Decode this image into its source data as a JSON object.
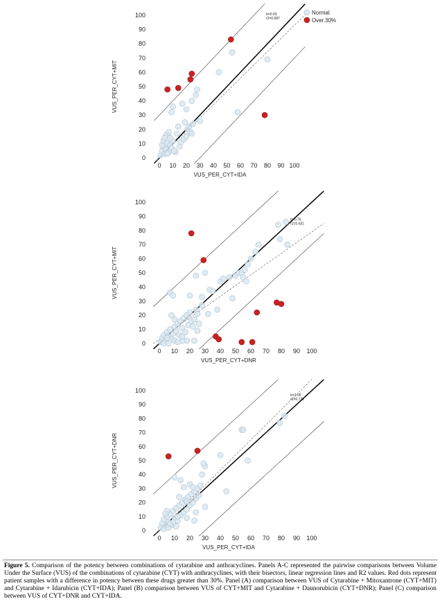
{
  "caption": {
    "label": "Figure 5.",
    "text": "Comparison of the potency between combinations of cytarabine and anthracyclines. Panels A-C represented the pairwise comparisons between Volume Under the Surface (VUS) of the combinations of cytarabine (CYT) with anthracyclines, with their bisectors, linear regression lines and R2 values. Red dots represent patient samples with a difference in potency between these drugs greater than 30%. Panel (A) comparison between VUS of Cytarabine + Mitoxantrone (CYT+MIT) and Cytarabine + Idarubicin (CYT+IDA); Panel (B) comparison between VUS of CYT+MIT and Cytarabine + Daunorubicin (CYT+DNR); Panel (C) comparison between VUS of CYT+DNR and CYT+IDA."
  },
  "colors": {
    "normal_fill": "#dce8f0",
    "normal_stroke": "#a9c2d4",
    "over_fill": "#cc2222",
    "over_stroke": "#8e1414"
  },
  "chart_data": [
    {
      "type": "scatter",
      "panel": "A",
      "xlabel": "VUS_PER_CYT+IDA",
      "ylabel": "VUS_PER_CYT+MIT",
      "xlim": [
        0,
        100
      ],
      "ylim": [
        0,
        100
      ],
      "xticks": [
        "0",
        "10",
        "20",
        "30",
        "40",
        "50",
        "60",
        "70",
        "80",
        "90",
        "100"
      ],
      "yticks": [
        "0",
        "10",
        "20",
        "30",
        "40",
        "50",
        "60",
        "70",
        "80",
        "90",
        "100"
      ],
      "stats": {
        "b": "b=0.93",
        "r2": "r2=0.687"
      },
      "regression": {
        "slope": 0.93,
        "intercept": 0
      },
      "offset_lines": [
        30,
        -30
      ],
      "legend": {
        "normal": "Normal",
        "over": "Over.30%",
        "position": "top-right"
      },
      "series": [
        {
          "name": "Normal",
          "points": [
            [
              1,
              2
            ],
            [
              2,
              5
            ],
            [
              3,
              8
            ],
            [
              4,
              3
            ],
            [
              5,
              6
            ],
            [
              6,
              10
            ],
            [
              7,
              4
            ],
            [
              8,
              9
            ],
            [
              9,
              7
            ],
            [
              10,
              12
            ],
            [
              3,
              12
            ],
            [
              5,
              16
            ],
            [
              8,
              14
            ],
            [
              12,
              4
            ],
            [
              13,
              17
            ],
            [
              15,
              8
            ],
            [
              16,
              11
            ],
            [
              18,
              13
            ],
            [
              20,
              15
            ],
            [
              21,
              20
            ],
            [
              22,
              22
            ],
            [
              23,
              18
            ],
            [
              25,
              24
            ],
            [
              24,
              17
            ],
            [
              17,
              38
            ],
            [
              20,
              34
            ],
            [
              10,
              36
            ],
            [
              9,
              32
            ],
            [
              14,
              22
            ],
            [
              27,
              44
            ],
            [
              28,
              48
            ],
            [
              30,
              26
            ],
            [
              24,
              40
            ],
            [
              44,
              60
            ],
            [
              54,
              74
            ],
            [
              58,
              32
            ],
            [
              80,
              69
            ],
            [
              6,
              3
            ],
            [
              11,
              5
            ],
            [
              2,
              9
            ],
            [
              4,
              14
            ],
            [
              7,
              18
            ],
            [
              19,
              25
            ]
          ]
        },
        {
          "name": "Over.30%",
          "points": [
            [
              6,
              48
            ],
            [
              14,
              49
            ],
            [
              23,
              55
            ],
            [
              24,
              59
            ],
            [
              53,
              83
            ],
            [
              78,
              30
            ]
          ]
        }
      ]
    },
    {
      "type": "scatter",
      "panel": "B",
      "xlabel": "VUS_PER_CYT+DNR",
      "ylabel": "VUS_PER_CYT+MIT",
      "xlim": [
        0,
        100
      ],
      "ylim": [
        0,
        100
      ],
      "xticks": [
        "0",
        "10",
        "20",
        "30",
        "40",
        "50",
        "60",
        "70",
        "80",
        "90",
        "100"
      ],
      "yticks": [
        "0",
        "10",
        "20",
        "30",
        "40",
        "50",
        "60",
        "70",
        "80",
        "90",
        "100"
      ],
      "stats": {
        "b": "b=0.76",
        "r2": "r2=0.631"
      },
      "regression": {
        "slope": 0.76,
        "intercept": 3
      },
      "offset_lines": [
        30,
        -30
      ],
      "series": [
        {
          "name": "Normal",
          "points": [
            [
              1,
              1
            ],
            [
              2,
              4
            ],
            [
              3,
              6
            ],
            [
              4,
              2
            ],
            [
              5,
              8
            ],
            [
              6,
              5
            ],
            [
              7,
              10
            ],
            [
              8,
              3
            ],
            [
              9,
              7
            ],
            [
              10,
              12
            ],
            [
              11,
              9
            ],
            [
              12,
              14
            ],
            [
              13,
              6
            ],
            [
              14,
              16
            ],
            [
              15,
              11
            ],
            [
              16,
              18
            ],
            [
              17,
              8
            ],
            [
              18,
              20
            ],
            [
              19,
              13
            ],
            [
              20,
              22
            ],
            [
              21,
              16
            ],
            [
              22,
              12
            ],
            [
              23,
              17
            ],
            [
              24,
              24
            ],
            [
              25,
              21
            ],
            [
              26,
              14
            ],
            [
              18,
              2
            ],
            [
              23,
              2
            ],
            [
              10,
              2
            ],
            [
              15,
              2
            ],
            [
              8,
              20
            ],
            [
              10,
              17
            ],
            [
              7,
              36
            ],
            [
              9,
              34
            ],
            [
              20,
              34
            ],
            [
              24,
              48
            ],
            [
              28,
              33
            ],
            [
              30,
              50
            ],
            [
              33,
              38
            ],
            [
              35,
              37
            ],
            [
              38,
              24
            ],
            [
              40,
              44
            ],
            [
              42,
              46
            ],
            [
              46,
              47
            ],
            [
              48,
              32
            ],
            [
              50,
              48
            ],
            [
              52,
              50
            ],
            [
              54,
              50
            ],
            [
              56,
              52
            ],
            [
              58,
              56
            ],
            [
              55,
              47
            ],
            [
              57,
              44
            ],
            [
              60,
              60
            ],
            [
              63,
              65
            ],
            [
              65,
              70
            ],
            [
              78,
              84
            ],
            [
              83,
              86
            ],
            [
              84,
              70
            ],
            [
              79,
              74
            ],
            [
              15,
              5
            ],
            [
              25,
              9
            ],
            [
              32,
              21
            ],
            [
              28,
              27
            ],
            [
              12,
              1
            ],
            [
              5,
              4
            ],
            [
              3,
              0
            ],
            [
              6,
              0
            ]
          ]
        },
        {
          "name": "Over.30%",
          "points": [
            [
              21,
              78
            ],
            [
              29,
              59
            ],
            [
              37,
              5
            ],
            [
              39,
              3
            ],
            [
              54,
              1
            ],
            [
              61,
              1
            ],
            [
              64,
              22
            ],
            [
              77,
              29
            ],
            [
              80,
              28
            ]
          ]
        }
      ]
    },
    {
      "type": "scatter",
      "panel": "C",
      "xlabel": "VUS_PER_CYT+IDA",
      "ylabel": "VUS_PER_CYT+DNR",
      "xlim": [
        0,
        100
      ],
      "ylim": [
        0,
        100
      ],
      "xticks": [
        "0",
        "10",
        "20",
        "30",
        "40",
        "50",
        "60",
        "70",
        "80",
        "90",
        "100"
      ],
      "yticks": [
        "0",
        "10",
        "20",
        "30",
        "40",
        "50",
        "60",
        "70",
        "80",
        "90",
        "100"
      ],
      "stats": {
        "b": "b=1.08",
        "r2": "r2=0.772"
      },
      "regression": {
        "slope": 1.08,
        "intercept": 0
      },
      "offset_lines": [
        30,
        -30
      ],
      "series": [
        {
          "name": "Normal",
          "points": [
            [
              1,
              2
            ],
            [
              2,
              5
            ],
            [
              3,
              8
            ],
            [
              4,
              3
            ],
            [
              5,
              10
            ],
            [
              6,
              6
            ],
            [
              7,
              12
            ],
            [
              8,
              4
            ],
            [
              9,
              14
            ],
            [
              10,
              9
            ],
            [
              11,
              16
            ],
            [
              12,
              7
            ],
            [
              13,
              18
            ],
            [
              14,
              11
            ],
            [
              15,
              20
            ],
            [
              16,
              13
            ],
            [
              17,
              22
            ],
            [
              18,
              15
            ],
            [
              19,
              24
            ],
            [
              20,
              18
            ],
            [
              21,
              26
            ],
            [
              22,
              20
            ],
            [
              23,
              28
            ],
            [
              24,
              23
            ],
            [
              25,
              30
            ],
            [
              26,
              25
            ],
            [
              27,
              32
            ],
            [
              28,
              40
            ],
            [
              30,
              46
            ],
            [
              29,
              48
            ],
            [
              20,
              33
            ],
            [
              16,
              31
            ],
            [
              14,
              36
            ],
            [
              10,
              38
            ],
            [
              18,
              21
            ],
            [
              22,
              31
            ],
            [
              30,
              17
            ],
            [
              44,
              28
            ],
            [
              40,
              54
            ],
            [
              54,
              72
            ],
            [
              55,
              72
            ],
            [
              58,
              50
            ],
            [
              82,
              82
            ],
            [
              79,
              77
            ],
            [
              3,
              1
            ],
            [
              6,
              2
            ],
            [
              9,
              6
            ],
            [
              12,
              10
            ],
            [
              5,
              14
            ],
            [
              7,
              5
            ],
            [
              4,
              12
            ],
            [
              11,
              3
            ],
            [
              18,
              9
            ],
            [
              24,
              13
            ],
            [
              23,
              7
            ],
            [
              13,
              24
            ]
          ]
        },
        {
          "name": "Over.30%",
          "points": [
            [
              6,
              53
            ],
            [
              25,
              57
            ]
          ]
        }
      ]
    }
  ]
}
